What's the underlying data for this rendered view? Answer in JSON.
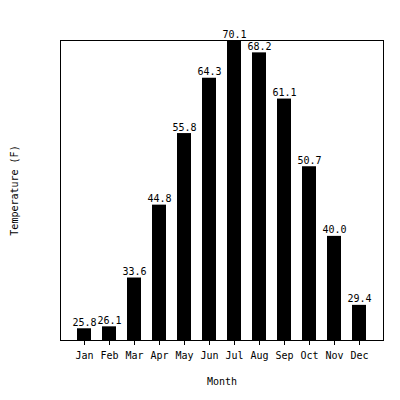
{
  "chart_data": {
    "type": "bar",
    "xlabel": "Month",
    "ylabel": "Temperature (F)",
    "categories": [
      "Jan",
      "Feb",
      "Mar",
      "Apr",
      "May",
      "Jun",
      "Jul",
      "Aug",
      "Sep",
      "Oct",
      "Nov",
      "Dec"
    ],
    "values": [
      25.8,
      26.1,
      33.6,
      44.8,
      55.8,
      64.3,
      70.1,
      68.2,
      61.1,
      50.7,
      40.0,
      29.4
    ],
    "value_labels": [
      "25.8",
      "26.1",
      "33.6",
      "44.8",
      "55.8",
      "64.3",
      "70.1",
      "68.2",
      "61.1",
      "50.7",
      "40.0",
      "29.4"
    ],
    "color": "#000000",
    "ylim": [
      24,
      70.1
    ],
    "grid": false,
    "data_labels": true,
    "tick_labels": "x"
  }
}
